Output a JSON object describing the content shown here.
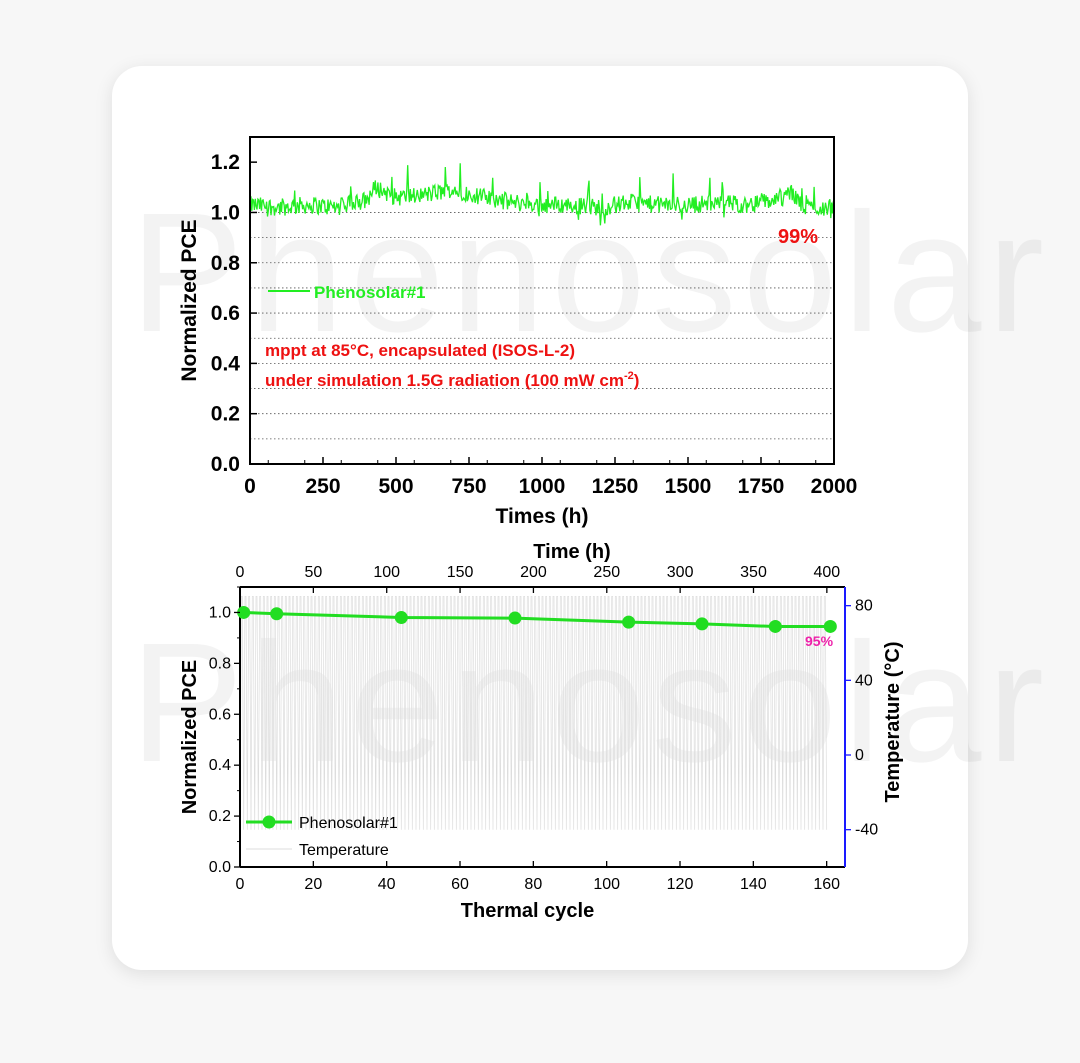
{
  "watermark": "Phenosolar",
  "chart_data": [
    {
      "type": "line",
      "xlabel": "Times (h)",
      "ylabel": "Normalized PCE",
      "xlim": [
        0,
        2000
      ],
      "ylim": [
        0,
        1.3
      ],
      "xticks": [
        "0",
        "250",
        "500",
        "750",
        "1000",
        "1250",
        "1500",
        "1750",
        "2000"
      ],
      "yticks": [
        "0.0",
        "0.2",
        "0.4",
        "0.6",
        "0.8",
        "1.0",
        "1.2"
      ],
      "grid": "dotted horizontal",
      "series": [
        {
          "name": "Phenosolar#1",
          "color": "#22ee22",
          "x": [
            0,
            100,
            200,
            300,
            400,
            430,
            500,
            600,
            700,
            800,
            900,
            1000,
            1100,
            1200,
            1300,
            1400,
            1500,
            1600,
            1700,
            1800,
            1850,
            1900,
            2000
          ],
          "y": [
            1.03,
            1.02,
            1.03,
            1.02,
            1.05,
            1.1,
            1.06,
            1.07,
            1.09,
            1.06,
            1.04,
            1.03,
            1.03,
            1.02,
            1.04,
            1.03,
            1.03,
            1.04,
            1.03,
            1.05,
            1.08,
            1.02,
            1.02
          ]
        }
      ],
      "annotations": {
        "final_label": "99%",
        "condition_line1": "mppt at 85°C, encapsulated (ISOS-L-2)",
        "condition_line2_prefix": "under simulation 1.5G radiation (100 mW cm",
        "condition_line2_sup": "-2",
        "condition_line2_suffix": ")"
      },
      "annotation_color": "#ee1111"
    },
    {
      "type": "line",
      "xlabel": "Thermal cycle",
      "ylabel": "Normalized PCE",
      "top_xlabel": "Time (h)",
      "right_ylabel": "Temperature (°C)",
      "xlim": [
        0,
        165
      ],
      "ylim": [
        0,
        1.1
      ],
      "top_xlim": [
        0,
        400
      ],
      "right_ylim": [
        -60,
        90
      ],
      "xticks": [
        "0",
        "20",
        "40",
        "60",
        "80",
        "100",
        "120",
        "140",
        "160"
      ],
      "yticks": [
        "0.0",
        "0.2",
        "0.4",
        "0.6",
        "0.8",
        "1.0"
      ],
      "top_xticks": [
        "0",
        "50",
        "100",
        "150",
        "200",
        "250",
        "300",
        "350",
        "400"
      ],
      "right_yticks": [
        "-40",
        "0",
        "40",
        "80"
      ],
      "right_axis_color": "#1a1aff",
      "series": [
        {
          "name": "Phenosolar#1",
          "color": "#22dd22",
          "x": [
            1,
            10,
            44,
            75,
            106,
            126,
            146,
            161
          ],
          "y": [
            1.0,
            0.995,
            0.98,
            0.978,
            0.962,
            0.955,
            0.945,
            0.945
          ]
        },
        {
          "name": "Temperature",
          "color": "#dddddd",
          "range": [
            -40,
            85
          ],
          "cycles": 160
        }
      ],
      "annotations": {
        "final_label": "95%"
      },
      "annotation_color": "#ee22aa"
    }
  ]
}
